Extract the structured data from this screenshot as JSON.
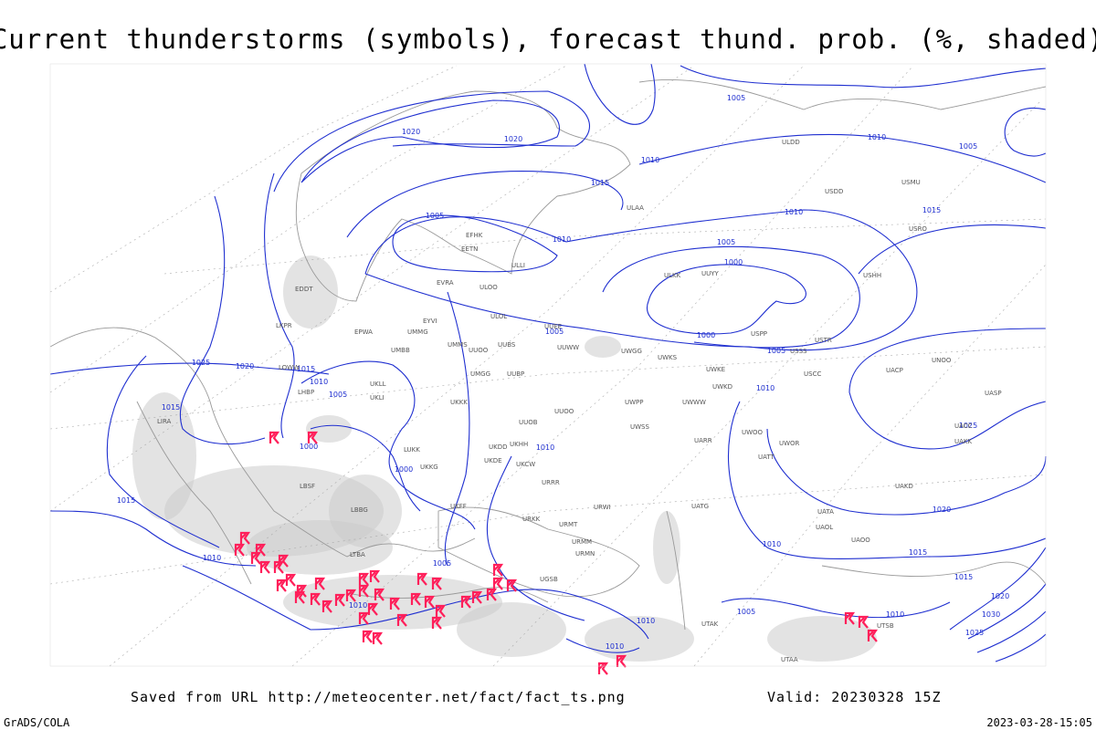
{
  "title": "Current thunderstorms (symbols), forecast thund. prob. (%, shaded)",
  "footer": {
    "source": "Saved from URL http://meteocenter.net/fact/fact_ts.png",
    "valid": "Valid: 20230328 15Z",
    "credit": "GrADS/COLA",
    "timestamp": "2023-03-28-15:05"
  },
  "isobar_labels": [
    1020,
    1020,
    1015,
    1010,
    1005,
    1010,
    1005,
    1005,
    1010,
    1005,
    1000,
    1000,
    1005,
    1005,
    1010,
    1015,
    1025,
    1020,
    1015,
    1010,
    1005,
    1015,
    1000,
    1000,
    1010,
    1010,
    1025,
    1020,
    1015,
    1010,
    1010,
    1015,
    1005,
    1010,
    1010,
    1010,
    1005,
    1015,
    1020,
    1025,
    1030,
    1010
  ],
  "stations": [
    "EFHK",
    "EETN",
    "EVRA",
    "ULOO",
    "ULLI",
    "ULAA",
    "UUEE",
    "UUWW",
    "UMMG",
    "UMMS",
    "UMBB",
    "EPWA",
    "EYVI",
    "ULOL",
    "UUBS",
    "UUOO",
    "UUBP",
    "UMGG",
    "UKLL",
    "UKLI",
    "UKKK",
    "UUOB",
    "UUOO",
    "UKHH",
    "UKDD",
    "UKDE",
    "UKCW",
    "UKKG",
    "LUKK",
    "URRR",
    "URWI",
    "URMT",
    "URMM",
    "URMN",
    "URKK",
    "UKFF",
    "UGSB",
    "LBSF",
    "LBBG",
    "LTBA",
    "UWPP",
    "UWSS",
    "UWWW",
    "UWKE",
    "UWKD",
    "UWGG",
    "UWKS",
    "USPP",
    "USSS",
    "USCC",
    "UNOO",
    "UASP",
    "UACC",
    "UAKK",
    "UAKD",
    "UATT",
    "UWOO",
    "UWOR",
    "UATG",
    "UATA",
    "UAOL",
    "UAOO",
    "UARR",
    "USMU",
    "USDD",
    "ULDD",
    "USRO",
    "ULKK",
    "UUYY",
    "USHH",
    "USTR",
    "UACP",
    "LIRA",
    "LKPR",
    "EDDT",
    "LHBP",
    "LOWW",
    "UTAA",
    "UTSB",
    "UTAK"
  ]
}
